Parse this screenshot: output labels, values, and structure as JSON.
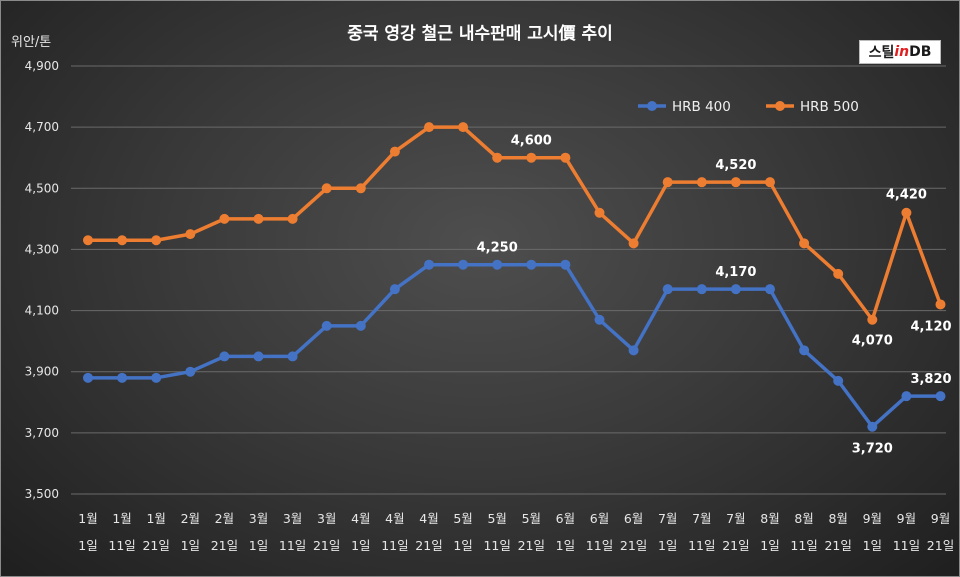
{
  "title": "중국 영강 철근 내수판매 고시價 추이",
  "unit_label": "위안/톤",
  "logo": {
    "prefix": "스틸",
    "accent": "in",
    "suffix": " DB"
  },
  "chart_data": {
    "type": "line",
    "categories": [
      [
        "1월",
        "1일"
      ],
      [
        "1월",
        "11일"
      ],
      [
        "1월",
        "21일"
      ],
      [
        "2월",
        "1일"
      ],
      [
        "2월",
        "21일"
      ],
      [
        "3월",
        "1일"
      ],
      [
        "3월",
        "11일"
      ],
      [
        "3월",
        "21일"
      ],
      [
        "4월",
        "1일"
      ],
      [
        "4월",
        "11일"
      ],
      [
        "4월",
        "21일"
      ],
      [
        "5월",
        "1일"
      ],
      [
        "5월",
        "11일"
      ],
      [
        "5월",
        "21일"
      ],
      [
        "6월",
        "1일"
      ],
      [
        "6월",
        "11일"
      ],
      [
        "6월",
        "21일"
      ],
      [
        "7월",
        "1일"
      ],
      [
        "7월",
        "11일"
      ],
      [
        "7월",
        "21일"
      ],
      [
        "8월",
        "1일"
      ],
      [
        "8월",
        "11일"
      ],
      [
        "8월",
        "21일"
      ],
      [
        "9월",
        "1일"
      ],
      [
        "9월",
        "11일"
      ],
      [
        "9월",
        "21일"
      ]
    ],
    "series": [
      {
        "name": "HRB 400",
        "color": "#4472c4",
        "values": [
          3880,
          3880,
          3880,
          3900,
          3950,
          3950,
          3950,
          4050,
          4050,
          4170,
          4250,
          4250,
          4250,
          4250,
          4250,
          4070,
          3970,
          4170,
          4170,
          4170,
          4170,
          3970,
          3870,
          3720,
          3820,
          3820
        ]
      },
      {
        "name": "HRB 500",
        "color": "#ed7d31",
        "values": [
          4330,
          4330,
          4330,
          4350,
          4400,
          4400,
          4400,
          4500,
          4500,
          4620,
          4700,
          4700,
          4600,
          4600,
          4600,
          4420,
          4320,
          4520,
          4520,
          4520,
          4520,
          4320,
          4220,
          4070,
          4420,
          4120
        ]
      }
    ],
    "data_labels": [
      {
        "series": 0,
        "index": 12,
        "text": "4,250"
      },
      {
        "series": 0,
        "index": 19,
        "text": "4,170"
      },
      {
        "series": 0,
        "index": 23,
        "text": "3,720"
      },
      {
        "series": 0,
        "index": 25,
        "text": "3,820"
      },
      {
        "series": 1,
        "index": 13,
        "text": "4,600"
      },
      {
        "series": 1,
        "index": 19,
        "text": "4,520"
      },
      {
        "series": 1,
        "index": 23,
        "text": "4,070"
      },
      {
        "series": 1,
        "index": 24,
        "text": "4,420"
      },
      {
        "series": 1,
        "index": 25,
        "text": "4,120"
      }
    ],
    "y_ticks": [
      "4,900",
      "4,700",
      "4,500",
      "4,300",
      "4,100",
      "3,900",
      "3,700",
      "3,500"
    ],
    "ylim": [
      3500,
      4900
    ],
    "grid": true,
    "legend_position": "top-right"
  }
}
